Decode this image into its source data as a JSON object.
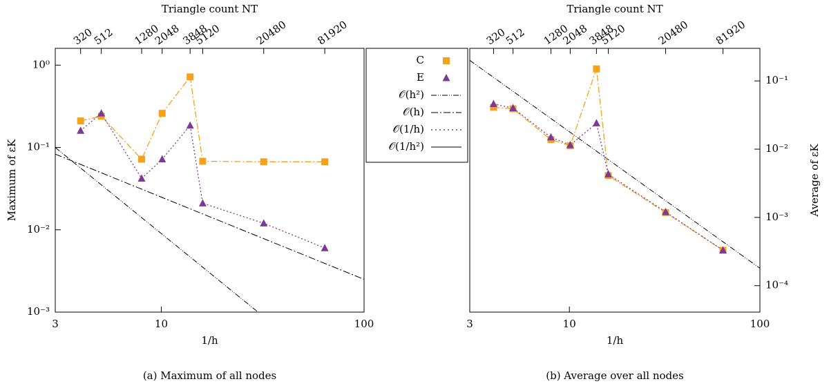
{
  "chart_data": [
    {
      "type": "line",
      "caption": "(a) Maximum of all nodes",
      "xlabel": "1/h",
      "ylabel": "Maximum of εK",
      "x2label": "Triangle count NT",
      "xscale": "log",
      "yscale": "log",
      "y_axis_side": "left",
      "xlim": [
        3,
        100
      ],
      "xticks": [
        3,
        10,
        100
      ],
      "ylim": [
        0.001,
        1.6
      ],
      "yticks": [
        {
          "value": 0.001,
          "label": "10⁻³"
        },
        {
          "value": 0.01,
          "label": "10⁻²"
        },
        {
          "value": 0.1,
          "label": "10⁻¹"
        },
        {
          "value": 1,
          "label": "10⁰"
        }
      ],
      "x2ticks": [
        {
          "value": 4,
          "label": "320"
        },
        {
          "value": 5.06,
          "label": "512"
        },
        {
          "value": 8,
          "label": "1280"
        },
        {
          "value": 10.1,
          "label": "2048"
        },
        {
          "value": 13.87,
          "label": "3848"
        },
        {
          "value": 16,
          "label": "5120"
        },
        {
          "value": 32,
          "label": "20480"
        },
        {
          "value": 64,
          "label": "81920"
        }
      ],
      "x": [
        4,
        5.06,
        8,
        10.1,
        13.87,
        16,
        32,
        64
      ],
      "series": [
        {
          "color": "#f5a21b",
          "marker": "square",
          "dash": "9 3 2 3",
          "values": [
            0.21,
            0.24,
            0.072,
            0.26,
            0.72,
            0.068,
            0.067,
            0.067
          ]
        },
        {
          "color": "#7b3a93",
          "marker": "triangle",
          "dash": "2 3",
          "values": [
            0.16,
            0.26,
            0.042,
            0.072,
            0.185,
            0.021,
            0.012,
            0.006
          ]
        }
      ],
      "references": [
        {
          "dash": "8 2 1 2 1 2",
          "x": [
            3,
            100
          ],
          "values": [
            0.1,
            9e-05
          ]
        },
        {
          "dash": "10 3 2 3",
          "x": [
            3,
            100
          ],
          "values": [
            0.083,
            0.0025
          ]
        }
      ]
    },
    {
      "type": "line",
      "caption": "(b) Average over all nodes",
      "xlabel": "1/h",
      "ylabel": "Average of εK",
      "x2label": "Triangle count NT",
      "xscale": "log",
      "yscale": "log",
      "y_axis_side": "right",
      "xlim": [
        3,
        100
      ],
      "xticks": [
        3,
        10,
        100
      ],
      "ylim": [
        4.1e-05,
        0.3
      ],
      "yticks": [
        {
          "value": 0.0001,
          "label": "10⁻⁴"
        },
        {
          "value": 0.001,
          "label": "10⁻³"
        },
        {
          "value": 0.01,
          "label": "10⁻²"
        },
        {
          "value": 0.1,
          "label": "10⁻¹"
        }
      ],
      "x2ticks": [
        {
          "value": 4,
          "label": "320"
        },
        {
          "value": 5.06,
          "label": "512"
        },
        {
          "value": 8,
          "label": "1280"
        },
        {
          "value": 10.1,
          "label": "2048"
        },
        {
          "value": 13.87,
          "label": "3848"
        },
        {
          "value": 16,
          "label": "5120"
        },
        {
          "value": 32,
          "label": "20480"
        },
        {
          "value": 64,
          "label": "81920"
        }
      ],
      "x": [
        4,
        5.06,
        8,
        10.1,
        13.87,
        16,
        32,
        64
      ],
      "series": [
        {
          "color": "#f5a21b",
          "marker": "square",
          "dash": "9 3 2 3",
          "values": [
            0.041,
            0.039,
            0.0138,
            0.0112,
            0.15,
            0.0041,
            0.00118,
            0.00033
          ]
        },
        {
          "color": "#7b3a93",
          "marker": "triangle",
          "dash": "2 3",
          "values": [
            0.046,
            0.04,
            0.0149,
            0.0115,
            0.024,
            0.0043,
            0.0012,
            0.00033
          ]
        }
      ],
      "references": [
        {
          "dash": "8 2 1 2 1 2",
          "x": [
            3,
            100
          ],
          "values": [
            0.2,
            0.00018
          ]
        }
      ]
    }
  ],
  "legend": {
    "entries": [
      {
        "name": "C",
        "color": "#f5a21b",
        "marker": "square"
      },
      {
        "name": "E",
        "color": "#7b3a93",
        "marker": "triangle"
      },
      {
        "name": "𝒪(h²)",
        "color": "#000000",
        "dash": "8 2 1 2 1 2"
      },
      {
        "name": "𝒪(h)",
        "color": "#000000",
        "dash": "10 3 2 3"
      },
      {
        "name": "𝒪(1/h)",
        "color": "#000000",
        "dash": "2 4"
      },
      {
        "name": "𝒪(1/h²)",
        "color": "#000000",
        "dash": "none"
      }
    ]
  }
}
